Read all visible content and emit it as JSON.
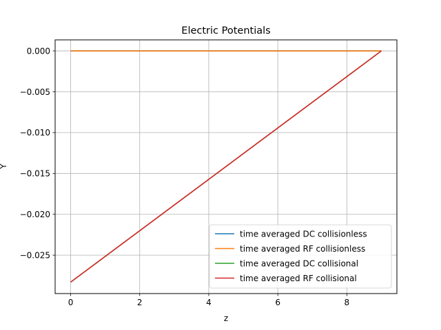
{
  "chart_data": {
    "type": "line",
    "title": "Electric Potentials",
    "xlabel": "z",
    "ylabel": "Y",
    "xlim": [
      -0.45,
      9.45
    ],
    "ylim": [
      -0.0297,
      0.00135
    ],
    "xticks": [
      0,
      2,
      4,
      6,
      8
    ],
    "xtick_labels": [
      "0",
      "2",
      "4",
      "6",
      "8"
    ],
    "yticks": [
      0.0,
      -0.005,
      -0.01,
      -0.015,
      -0.02,
      -0.025
    ],
    "ytick_labels": [
      "0.000",
      "−0.005",
      "−0.010",
      "−0.015",
      "−0.020",
      "−0.025"
    ],
    "grid": true,
    "legend_position": "lower-right",
    "series": [
      {
        "name": "time averaged DC collisionless",
        "color": "#1f77b4",
        "x": [
          0,
          9
        ],
        "y": [
          0.0,
          0.0
        ]
      },
      {
        "name": "time averaged RF collisionless",
        "color": "#ff7f0e",
        "x": [
          0,
          9
        ],
        "y": [
          0.0,
          0.0
        ]
      },
      {
        "name": "time averaged DC collisional",
        "color": "#2ca02c",
        "x": [
          0,
          9
        ],
        "y": [
          -0.0283,
          0.0
        ]
      },
      {
        "name": "time averaged RF collisional",
        "color": "#d62728",
        "x": [
          0,
          9
        ],
        "y": [
          -0.0283,
          0.0
        ]
      }
    ]
  }
}
